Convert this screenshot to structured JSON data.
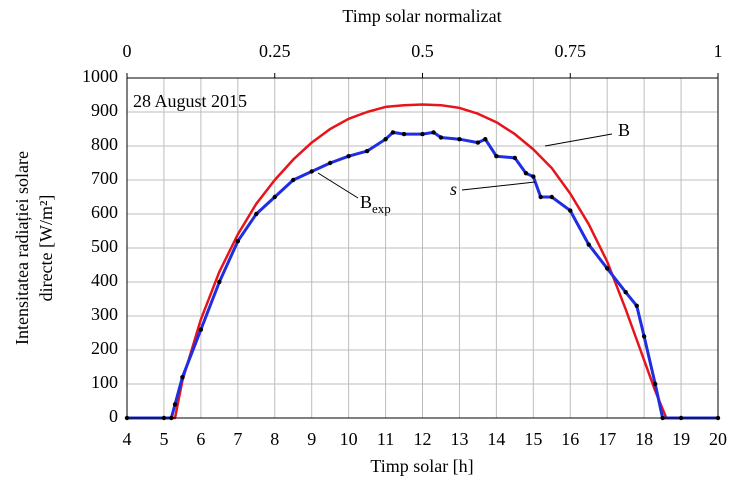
{
  "chart_data": {
    "type": "line",
    "x2_label": "Timp solar normalizat",
    "x_label": "Timp solar [h]",
    "y_label": [
      "Intensitatea radiației solare",
      "directe [W/m²]"
    ],
    "annotation_date": "28 August 2015",
    "annotation_s": "s",
    "xlim": [
      4,
      20
    ],
    "xticks": [
      4,
      5,
      6,
      7,
      8,
      9,
      10,
      11,
      12,
      13,
      14,
      15,
      16,
      17,
      18,
      19,
      20
    ],
    "x2lim": [
      0,
      1
    ],
    "x2ticks": [
      0,
      0.25,
      0.5,
      0.75,
      1
    ],
    "ylim": [
      0,
      1000
    ],
    "yticks": [
      0,
      100,
      200,
      300,
      400,
      500,
      600,
      700,
      800,
      900,
      1000
    ],
    "grid": true,
    "series": [
      {
        "name": "B",
        "color": "#e8141c",
        "x": [
          4,
          5,
          5.3,
          5.5,
          6,
          6.5,
          7,
          7.5,
          8,
          8.5,
          9,
          9.5,
          10,
          10.5,
          11,
          11.5,
          12,
          12.5,
          13,
          13.5,
          14,
          14.5,
          15,
          15.5,
          16,
          16.5,
          17,
          17.5,
          18,
          18.3,
          18.6,
          19,
          20
        ],
        "values": [
          0,
          0,
          0,
          110,
          290,
          430,
          540,
          630,
          700,
          760,
          810,
          850,
          880,
          900,
          915,
          920,
          922,
          920,
          912,
          895,
          870,
          835,
          790,
          735,
          660,
          570,
          460,
          320,
          170,
          80,
          0,
          0,
          0
        ]
      },
      {
        "name": "B",
        "name_sub": "exp",
        "color": "#1f2ee0",
        "marker_color": "#000000",
        "x": [
          4,
          5,
          5.2,
          5.3,
          5.5,
          6,
          6.5,
          7,
          7.5,
          8,
          8.5,
          9,
          9.5,
          10,
          10.5,
          11,
          11.2,
          11.5,
          12,
          12.3,
          12.5,
          13,
          13.5,
          13.7,
          14,
          14.5,
          14.8,
          15,
          15.2,
          15.5,
          16,
          16.5,
          17,
          17.5,
          17.8,
          18,
          18.3,
          18.5,
          19,
          20
        ],
        "values": [
          0,
          0,
          0,
          40,
          120,
          260,
          400,
          520,
          600,
          650,
          700,
          725,
          750,
          770,
          785,
          820,
          840,
          835,
          835,
          840,
          825,
          820,
          810,
          820,
          770,
          765,
          720,
          710,
          650,
          650,
          610,
          510,
          440,
          370,
          330,
          240,
          100,
          0,
          0,
          0
        ]
      }
    ]
  }
}
